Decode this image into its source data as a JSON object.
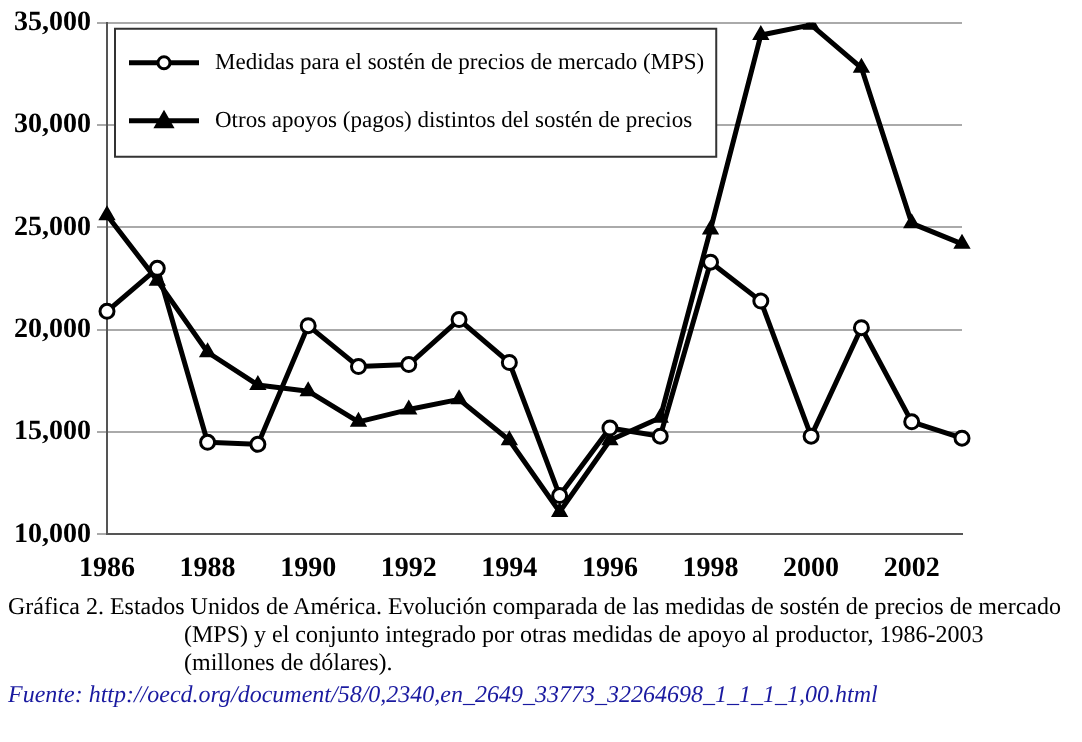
{
  "chart_data": {
    "type": "line",
    "categories": [
      "1986",
      null,
      "1988",
      null,
      "1990",
      null,
      "1992",
      null,
      "1994",
      null,
      "1996",
      null,
      "1998",
      null,
      "2000",
      null,
      "2002",
      null
    ],
    "series": [
      {
        "name": "Medidas para el sostén de precios de mercado (MPS)",
        "color": "#000000",
        "marker": "circle",
        "values": [
          20900,
          23000,
          14500,
          14400,
          20200,
          18200,
          18300,
          20500,
          18400,
          11900,
          15200,
          14800,
          23300,
          21400,
          14800,
          20100,
          15500,
          14700
        ]
      },
      {
        "name": "Otros apoyos (pagos) distintos del sostén de precios",
        "color": "#000000",
        "marker": "triangle",
        "values": [
          25600,
          22400,
          18900,
          17300,
          17000,
          15500,
          16100,
          16600,
          14600,
          11100,
          14600,
          15700,
          24900,
          34400,
          34900,
          32800,
          25200,
          24200
        ]
      }
    ],
    "ylim": [
      10000,
      35000
    ],
    "yticks": [
      {
        "value": 10000,
        "label": "10,000"
      },
      {
        "value": 15000,
        "label": "15,000"
      },
      {
        "value": 20000,
        "label": "20,000"
      },
      {
        "value": 25000,
        "label": "25,000"
      },
      {
        "value": 30000,
        "label": "30,000"
      },
      {
        "value": 35000,
        "label": "35,000"
      }
    ],
    "grid": "y",
    "legend": "top left",
    "line_style": "solid",
    "annotations": [
      "Gráfica 2.  Estados Unidos de América. Evolución comparada de las medidas de sostén de precios de mercado (MPS) y el conjunto integrado por otras medidas de apoyo al productor, 1986-2003 (millones de dólares).",
      "Fuente:  http://oecd.org/document/58/0,2340,en_2649_33773_32264698_1_1_1_1,00.html"
    ]
  }
}
